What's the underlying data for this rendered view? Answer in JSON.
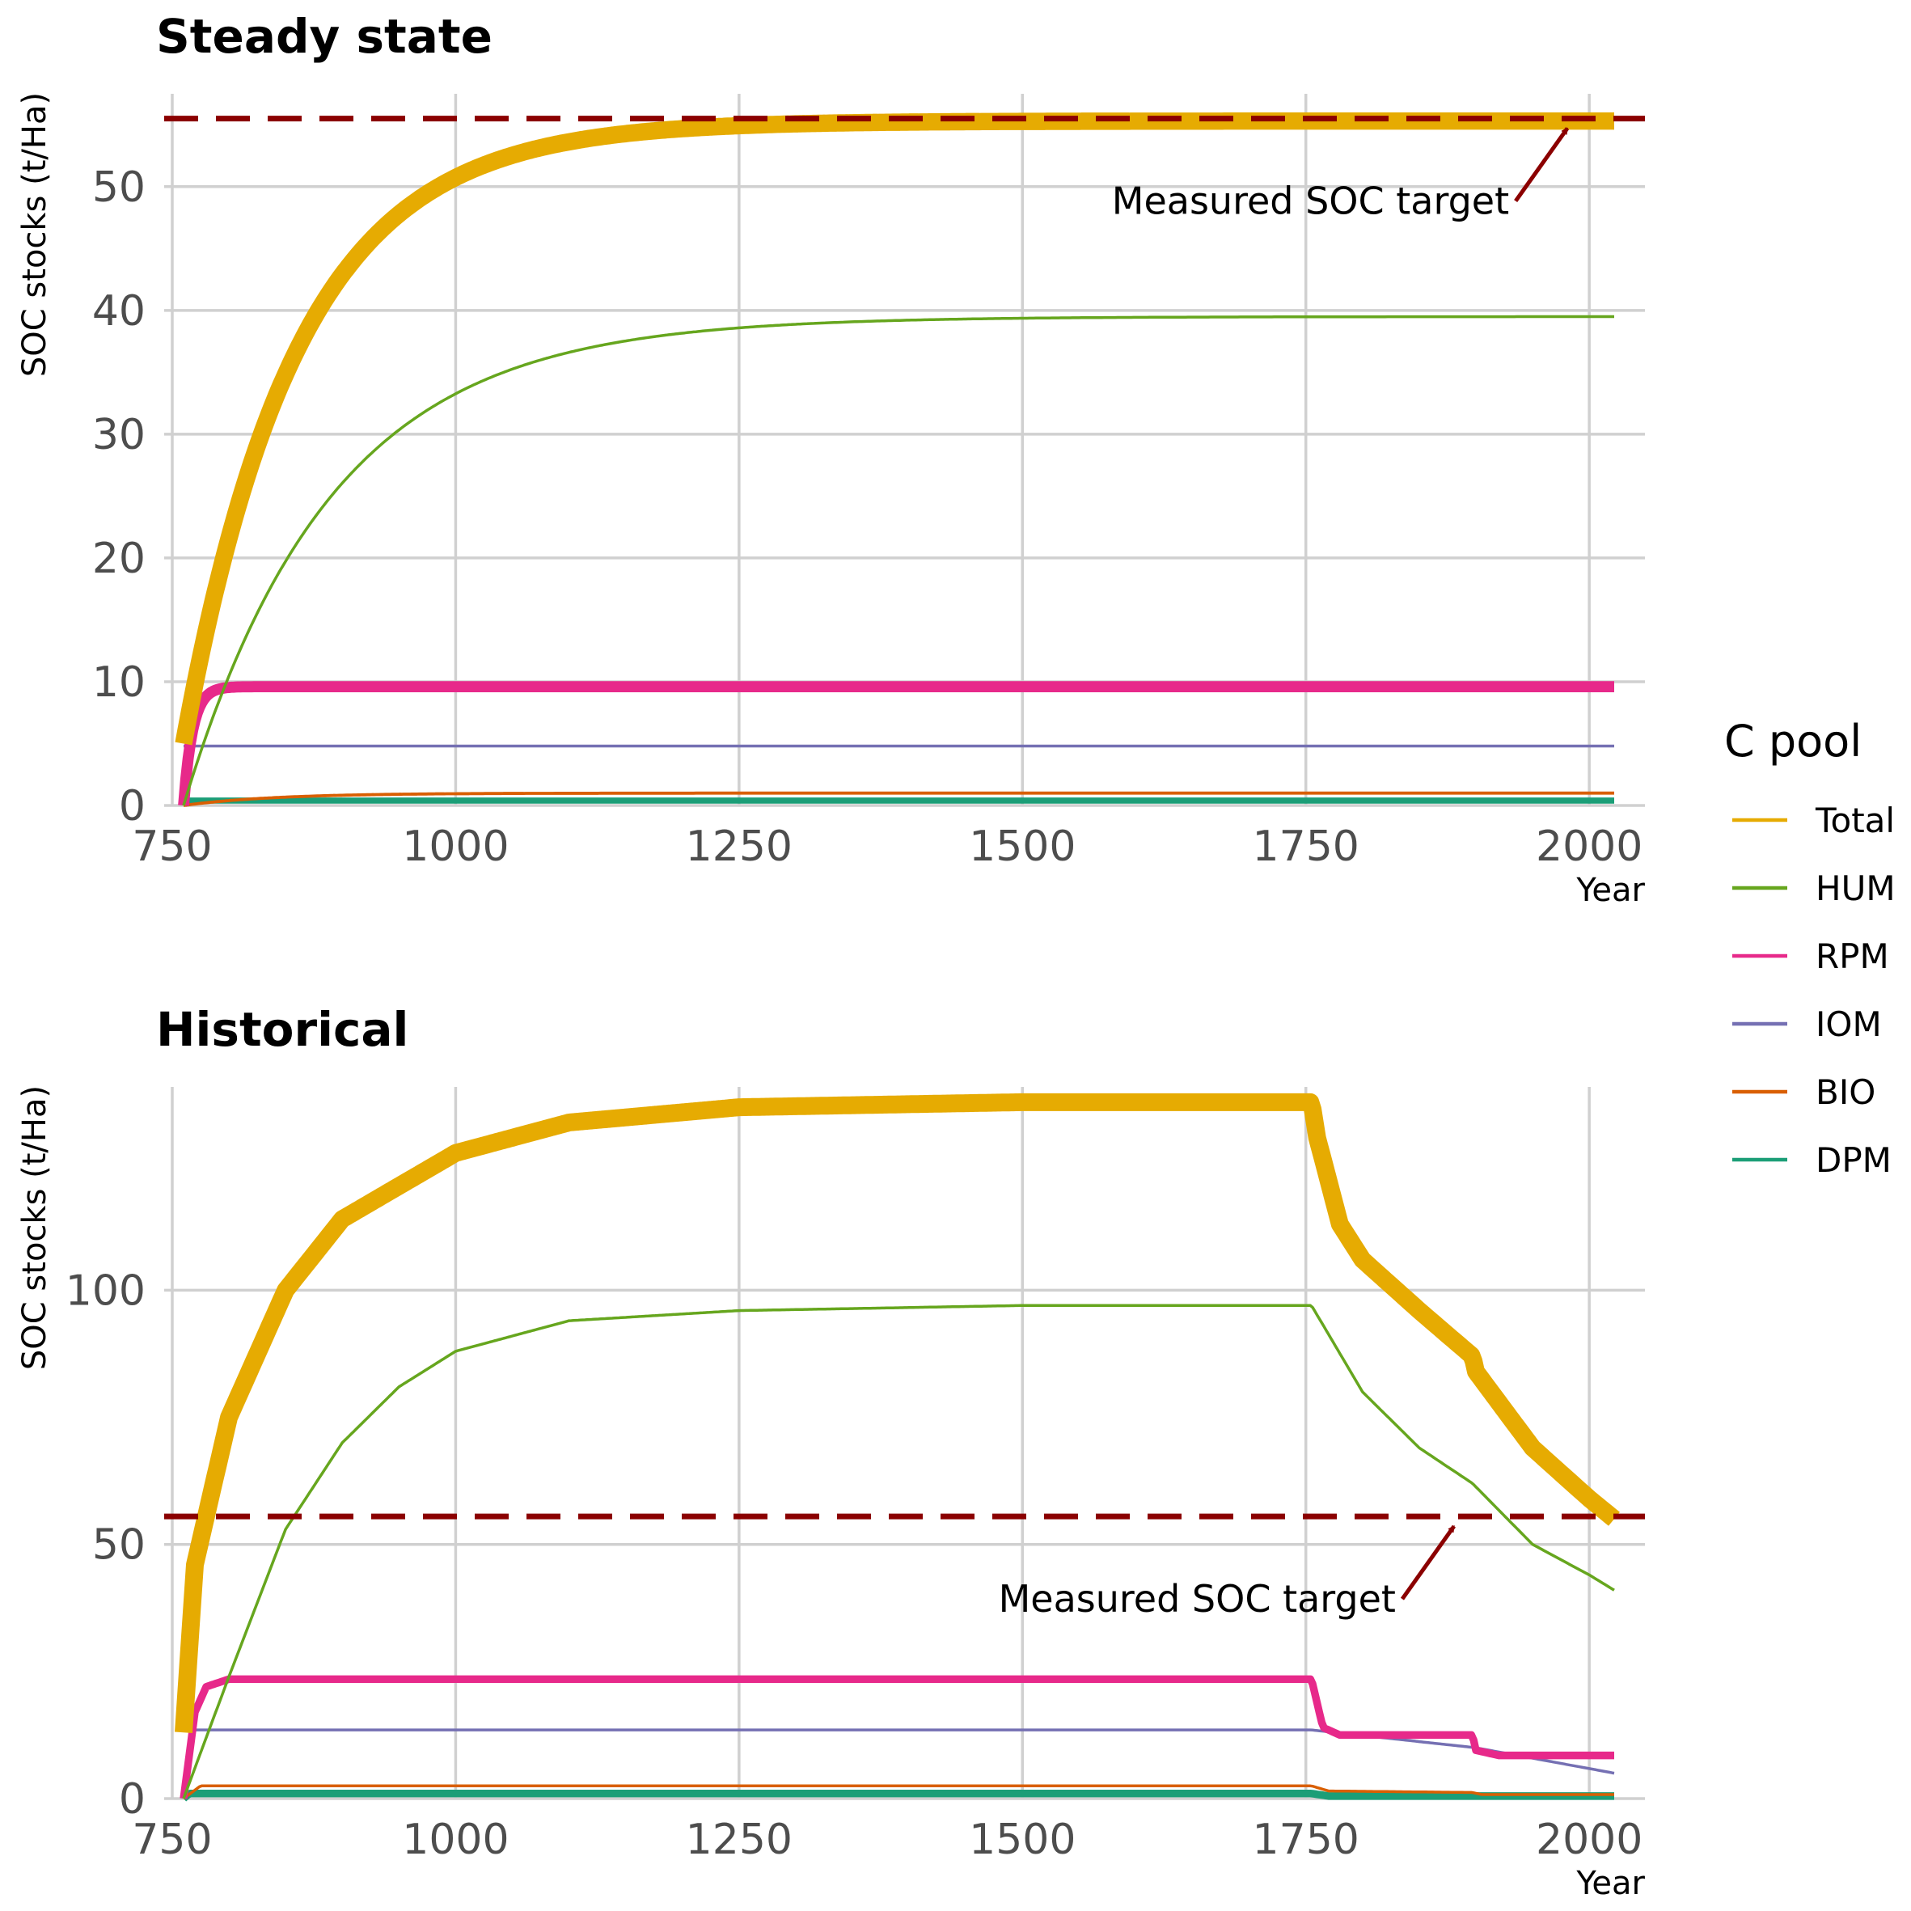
{
  "legend": {
    "title": "C pool",
    "entries": [
      {
        "label": "Total",
        "color": "#E6AB02"
      },
      {
        "label": "HUM",
        "color": "#66A61E"
      },
      {
        "label": "RPM",
        "color": "#E7298A"
      },
      {
        "label": "IOM",
        "color": "#7570B3"
      },
      {
        "label": "BIO",
        "color": "#D95F02"
      },
      {
        "label": "DPM",
        "color": "#1B9E77"
      }
    ]
  },
  "target_color": "#8B0000",
  "chart_data": [
    {
      "type": "line",
      "title": "Steady state",
      "xlabel": "Year",
      "ylabel": "SOC stocks (t/Ha)",
      "xlim": [
        760,
        2022
      ],
      "ylim": [
        0,
        57.5
      ],
      "xticks": [
        750,
        1000,
        1250,
        1500,
        1750,
        2000
      ],
      "yticks": [
        0,
        10,
        20,
        30,
        40,
        50
      ],
      "target": {
        "value": 55.5,
        "label": "Measured SOC target",
        "arrow_year": 1985
      },
      "series": [
        {
          "name": "Total",
          "model": "exp",
          "start": 5,
          "end": 55.3,
          "tau": 100,
          "band": 1.4
        },
        {
          "name": "HUM",
          "model": "exp",
          "start": 0,
          "end": 39.5,
          "tau": 130,
          "band": 0
        },
        {
          "name": "RPM",
          "model": "exp",
          "start": 0,
          "end": 9.6,
          "tau": 8,
          "band": 0.9
        },
        {
          "name": "IOM",
          "model": "const",
          "start": 4.8,
          "end": 4.8,
          "band": 0
        },
        {
          "name": "BIO",
          "model": "exp",
          "start": 0,
          "end": 1.0,
          "tau": 80,
          "band": 0.25
        },
        {
          "name": "DPM",
          "model": "exp",
          "start": 0,
          "end": 0.4,
          "tau": 1,
          "band": 0.5
        }
      ]
    },
    {
      "type": "line",
      "title": "Historical",
      "xlabel": "Year",
      "ylabel": "SOC stocks (t/Ha)",
      "xlim": [
        760,
        2022
      ],
      "ylim": [
        0,
        140
      ],
      "xticks": [
        750,
        1000,
        1250,
        1500,
        1750,
        2000
      ],
      "yticks": [
        0,
        50,
        100
      ],
      "target": {
        "value": 55.5,
        "label": "Measured SOC target",
        "arrow_year": 1885
      },
      "series": [
        {
          "name": "Total",
          "model": "path",
          "band": 3.5,
          "points": [
            [
              760,
              13
            ],
            [
              770,
              46
            ],
            [
              800,
              75
            ],
            [
              850,
              100
            ],
            [
              900,
              114
            ],
            [
              1000,
              127
            ],
            [
              1100,
              133
            ],
            [
              1250,
              136
            ],
            [
              1500,
              137
            ],
            [
              1755,
              137
            ],
            [
              1760,
              130
            ],
            [
              1780,
              113
            ],
            [
              1800,
              106
            ],
            [
              1850,
              96
            ],
            [
              1897,
              87
            ],
            [
              1900,
              84
            ],
            [
              1950,
              69
            ],
            [
              2000,
              59
            ],
            [
              2022,
              55
            ]
          ]
        },
        {
          "name": "HUM",
          "model": "path",
          "band": 0,
          "points": [
            [
              760,
              0
            ],
            [
              800,
              24
            ],
            [
              850,
              53
            ],
            [
              900,
              70
            ],
            [
              950,
              81
            ],
            [
              1000,
              88
            ],
            [
              1100,
              94
            ],
            [
              1250,
              96
            ],
            [
              1500,
              97
            ],
            [
              1755,
              97
            ],
            [
              1800,
              80
            ],
            [
              1850,
              69
            ],
            [
              1897,
              62
            ],
            [
              1950,
              50
            ],
            [
              2000,
              44
            ],
            [
              2022,
              41
            ]
          ]
        },
        {
          "name": "RPM",
          "model": "path",
          "band": 1.5,
          "points": [
            [
              760,
              0
            ],
            [
              770,
              17
            ],
            [
              780,
              22
            ],
            [
              800,
              23.5
            ],
            [
              1755,
              23.5
            ],
            [
              1765,
              14
            ],
            [
              1780,
              12.5
            ],
            [
              1897,
              12.5
            ],
            [
              1900,
              9.5
            ],
            [
              1920,
              8.5
            ],
            [
              2022,
              8.5
            ]
          ]
        },
        {
          "name": "IOM",
          "model": "path",
          "band": 0,
          "points": [
            [
              760,
              13.5
            ],
            [
              1755,
              13.5
            ],
            [
              1900,
              10
            ],
            [
              2022,
              5
            ]
          ]
        },
        {
          "name": "BIO",
          "model": "path",
          "band": 0.4,
          "points": [
            [
              760,
              0
            ],
            [
              775,
              2.5
            ],
            [
              1755,
              2.5
            ],
            [
              1770,
              1.5
            ],
            [
              1897,
              1.2
            ],
            [
              1905,
              0.8
            ],
            [
              2022,
              0.8
            ]
          ]
        },
        {
          "name": "DPM",
          "model": "path",
          "band": 1.5,
          "points": [
            [
              760,
              0
            ],
            [
              765,
              1
            ],
            [
              1755,
              1
            ],
            [
              1770,
              0.5
            ],
            [
              2022,
              0.5
            ]
          ]
        }
      ]
    }
  ]
}
